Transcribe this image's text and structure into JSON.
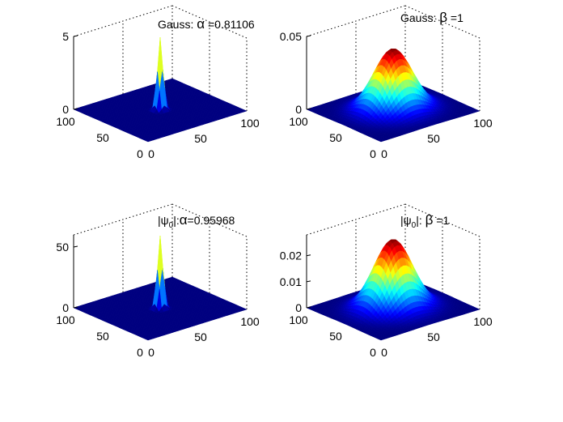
{
  "figure": {
    "background": "#ffffff"
  },
  "chart_data": [
    {
      "type": "surface",
      "title_prefix": "Gauss: ",
      "title_symbol": "α",
      "title_value": " =0.81106",
      "x_range": [
        0,
        100
      ],
      "y_range": [
        0,
        100
      ],
      "z_range": [
        0,
        5
      ],
      "x_ticks": [
        "0",
        "50",
        "100"
      ],
      "y_ticks": [
        "0",
        "50",
        "100"
      ],
      "z_ticks": [
        "0",
        "5"
      ],
      "peak_value": 5.0,
      "peak_location": [
        50,
        50
      ],
      "shape": "narrow-spike",
      "colormap": "jet",
      "grid": true
    },
    {
      "type": "surface",
      "title_prefix": "Gauss:  ",
      "title_symbol": "β",
      "title_value": "  =1",
      "x_range": [
        0,
        100
      ],
      "y_range": [
        0,
        100
      ],
      "z_range": [
        0,
        0.05
      ],
      "x_ticks": [
        "0",
        "50",
        "100"
      ],
      "y_ticks": [
        "0",
        "50",
        "100"
      ],
      "z_ticks": [
        "0",
        "0.05"
      ],
      "peak_value": 0.042,
      "peak_location": [
        50,
        50
      ],
      "shape": "broad-gaussian",
      "colormap": "jet",
      "grid": true
    },
    {
      "type": "surface",
      "title_prefix": "|ψ",
      "title_sub": "0",
      "title_suffix": "|:",
      "title_symbol": "α",
      "title_value": "=0.95968",
      "x_range": [
        0,
        100
      ],
      "y_range": [
        0,
        100
      ],
      "z_range": [
        0,
        60
      ],
      "x_ticks": [
        "0",
        "50",
        "100"
      ],
      "y_ticks": [
        "0",
        "50",
        "100"
      ],
      "z_ticks": [
        "0",
        "50"
      ],
      "peak_value": 60,
      "peak_location": [
        50,
        50
      ],
      "shape": "narrow-spike",
      "colormap": "jet",
      "grid": true
    },
    {
      "type": "surface",
      "title_prefix": "|ψ",
      "title_sub": "0",
      "title_suffix": "|:  ",
      "title_symbol": "β",
      "title_value": " =1",
      "x_range": [
        0,
        100
      ],
      "y_range": [
        0,
        100
      ],
      "z_range": [
        0,
        0.028
      ],
      "x_ticks": [
        "0",
        "50",
        "100"
      ],
      "y_ticks": [
        "0",
        "50",
        "100"
      ],
      "z_ticks": [
        "0",
        "0.01",
        "0.02"
      ],
      "peak_value": 0.0265,
      "peak_location": [
        50,
        50
      ],
      "shape": "broad-gaussian",
      "colormap": "jet",
      "grid": true
    }
  ]
}
